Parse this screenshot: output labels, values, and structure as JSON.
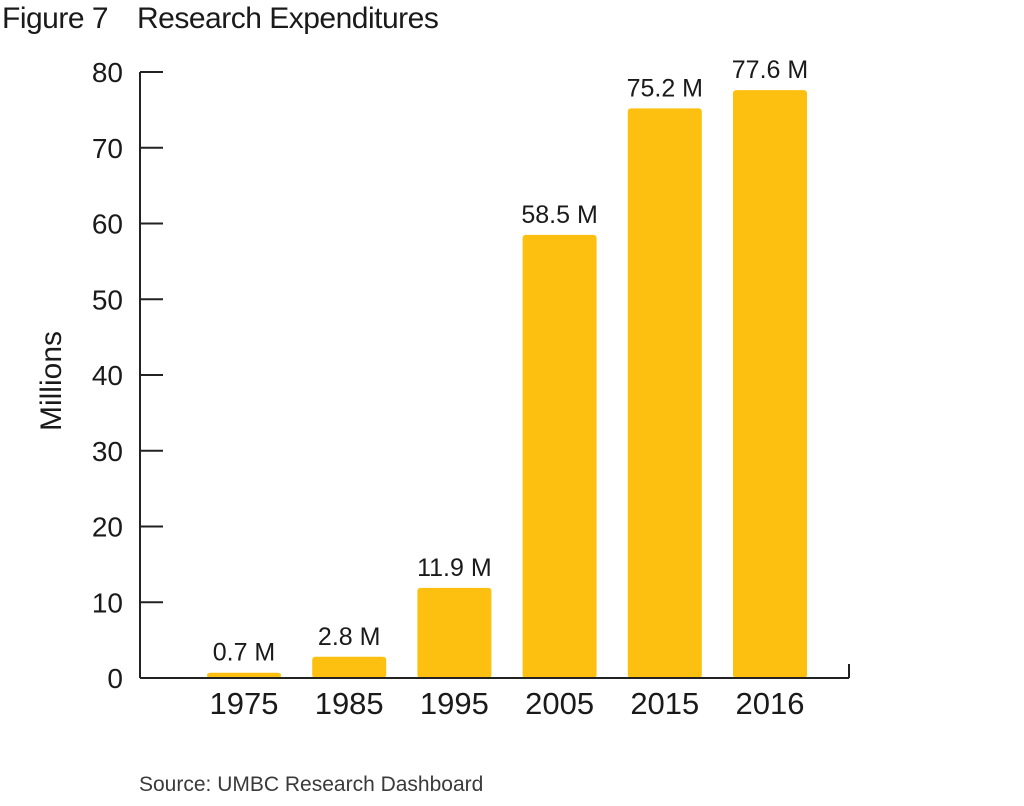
{
  "figure_label": "Figure 7",
  "source_note": "Source: UMBC Research Dashboard",
  "colors": {
    "bar": "#fdc010",
    "axis": "#222222",
    "text": "#1a1a1a"
  },
  "chart_data": {
    "type": "bar",
    "title": "Research Expenditures",
    "xlabel": "",
    "ylabel": "Millions",
    "ylim": [
      0,
      80
    ],
    "yticks": [
      0,
      10,
      20,
      30,
      40,
      50,
      60,
      70,
      80
    ],
    "grid": false,
    "categories": [
      "1975",
      "1985",
      "1995",
      "2005",
      "2015",
      "2016"
    ],
    "values": [
      0.7,
      2.8,
      11.9,
      58.5,
      75.2,
      77.6
    ],
    "data_labels": [
      "0.7 M",
      "2.8 M",
      "11.9 M",
      "58.5 M",
      "75.2 M",
      "77.6 M"
    ]
  }
}
